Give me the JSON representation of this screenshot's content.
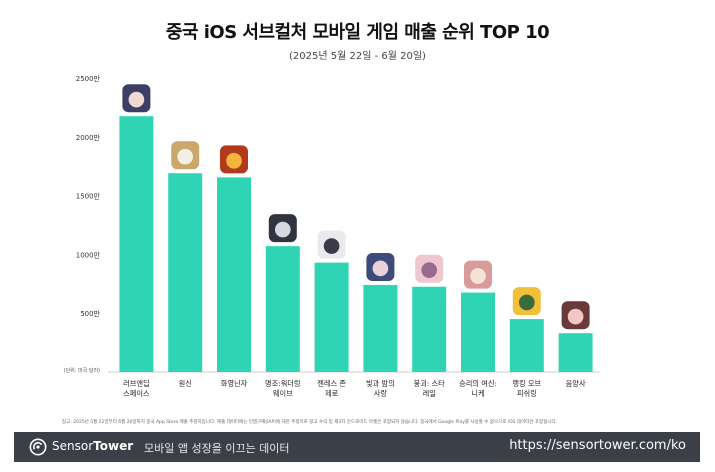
{
  "chart_data": {
    "type": "bar",
    "title": "중국 iOS 서브컬처 모바일 게임 매출 순위 TOP 10",
    "subtitle": "(2025년 5월 22일 - 6월 20일)",
    "unit_note": "(단위: 미국 달러)",
    "categories": [
      [
        "러브앤딥",
        "스페이스"
      ],
      [
        "원신"
      ],
      [
        "화영닌자"
      ],
      [
        "명조:워더링",
        "웨이브"
      ],
      [
        "젠레스 존",
        "제로"
      ],
      [
        "빛과 밤의",
        "사랑"
      ],
      [
        "붕괴: 스타",
        "레일"
      ],
      [
        "승리의 여신:",
        "니케"
      ],
      [
        "랭킹 오브",
        "피쉬링"
      ],
      [
        "음양사"
      ]
    ],
    "values": [
      21750000,
      16900000,
      16550000,
      10700000,
      9300000,
      7400000,
      7250000,
      6750000,
      4500000,
      3300000
    ],
    "ylim": [
      0,
      25000000
    ],
    "yticks": [
      {
        "value": 5000000,
        "label": "500만"
      },
      {
        "value": 10000000,
        "label": "1000만"
      },
      {
        "value": 15000000,
        "label": "1500만"
      },
      {
        "value": 20000000,
        "label": "2000만"
      },
      {
        "value": 25000000,
        "label": "2500만"
      }
    ],
    "bar_color": "#2fd4b4",
    "icon_colors": [
      [
        "#3b3f66",
        "#f0d9d0"
      ],
      [
        "#c9a86a",
        "#f3efe6"
      ],
      [
        "#b23a1c",
        "#f2b63a"
      ],
      [
        "#2f3440",
        "#d7d9de"
      ],
      [
        "#e9e9ee",
        "#3a3a4a"
      ],
      [
        "#3c4b7a",
        "#e9d3d8"
      ],
      [
        "#f0c7cf",
        "#9a6a8f"
      ],
      [
        "#d99a9a",
        "#f6e2d6"
      ],
      [
        "#f0c03a",
        "#3d6a3a"
      ],
      [
        "#6a3a3a",
        "#f1c6c6"
      ]
    ],
    "grid": false
  },
  "footnote": "참고: 2025년 5월 22일부터 6월 20일까지 중국 App Store 매출 추정치입니다. 매출 데이터에는 인앱구매(IAP)에 대한 추정치로 광고 수익 및 제3자 안드로이드 마켓은 포함되지 않습니다. 중국에서 Google Play를 사용할 수 없으므로 iOS 데이터만 포함됩니다.",
  "footer": {
    "logo_light": "Sensor",
    "logo_bold": "Tower",
    "tagline": "모바일 앱 성장을 이끄는 데이터",
    "url": "https://sensortower.com/ko",
    "background": "#3a3f48",
    "logo_icon": "sensortower-logo-icon"
  }
}
